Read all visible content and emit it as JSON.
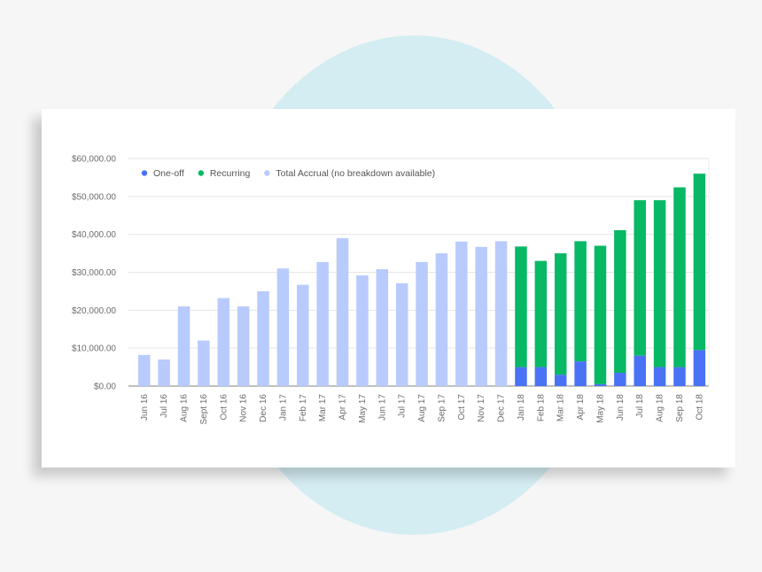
{
  "chart_data": {
    "type": "bar",
    "stacked": true,
    "categories": [
      "Jun 16",
      "Jul 16",
      "Aug 16",
      "Sept 16",
      "Oct 16",
      "Nov 16",
      "Dec 16",
      "Jan 17",
      "Feb 17",
      "Mar 17",
      "Apr 17",
      "May 17",
      "Jun 17",
      "Jul 17",
      "Aug 17",
      "Sep 17",
      "Oct 17",
      "Nov 17",
      "Dec 17",
      "Jan 18",
      "Feb 18",
      "Mar 18",
      "Apr 18",
      "May 18",
      "Jun 18",
      "Jul 18",
      "Aug 18",
      "Sep 18",
      "Oct 18"
    ],
    "series": [
      {
        "name": "One-off",
        "color": "#4a72f5",
        "values": [
          0,
          0,
          0,
          0,
          0,
          0,
          0,
          0,
          0,
          0,
          0,
          0,
          0,
          0,
          0,
          0,
          0,
          0,
          0,
          5000,
          5000,
          3000,
          6500,
          500,
          3500,
          8000,
          5000,
          5000,
          9500
        ]
      },
      {
        "name": "Recurring",
        "color": "#07b865",
        "values": [
          0,
          0,
          0,
          0,
          0,
          0,
          0,
          0,
          0,
          0,
          0,
          0,
          0,
          0,
          0,
          0,
          0,
          0,
          0,
          31800,
          28000,
          32000,
          31700,
          36500,
          37600,
          41000,
          44000,
          47400,
          46500
        ]
      },
      {
        "name": "Total Accrual (no breakdown available)",
        "color": "#b9cbfc",
        "values": [
          8200,
          7000,
          21000,
          12000,
          23200,
          21000,
          25000,
          31000,
          26700,
          32700,
          39000,
          29200,
          30800,
          27100,
          32700,
          35000,
          38100,
          36700,
          38200,
          0,
          0,
          0,
          0,
          0,
          0,
          0,
          0,
          0,
          0
        ]
      }
    ],
    "ylim": [
      0,
      60000
    ],
    "yticks": [
      "$0.00",
      "$10,000.00",
      "$20,000.00",
      "$30,000.00",
      "$40,000.00",
      "$50,000.00",
      "$60,000.00"
    ],
    "ytick_values": [
      0,
      10000,
      20000,
      30000,
      40000,
      50000,
      60000
    ],
    "legend_position": "top-left",
    "grid": true
  }
}
